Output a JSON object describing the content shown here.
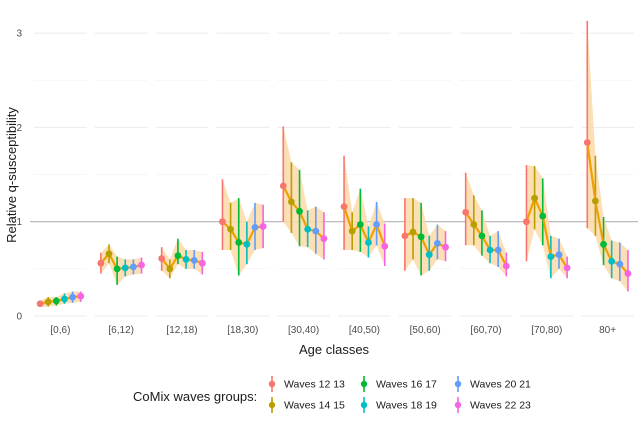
{
  "chart_data": {
    "type": "line",
    "title": "",
    "xlabel": "Age classes",
    "ylabel": "Relative q-susceptibility",
    "ylim": [
      0,
      3.2
    ],
    "yticks": [
      0,
      1,
      2,
      3
    ],
    "reference_line": 1,
    "grid": true,
    "categories": [
      "[0,6)",
      "[6,12)",
      "[12,18)",
      "[18,30)",
      "[30,40)",
      "[40,50)",
      "[50,60)",
      "[60,70)",
      "[70,80)",
      "80+"
    ],
    "legend": {
      "title": "CoMix waves groups:",
      "position": "bottom"
    },
    "series": [
      {
        "name": "Waves 12 13",
        "color": "#F8766D",
        "values": [
          0.13,
          0.56,
          0.61,
          1.0,
          1.38,
          1.16,
          0.85,
          1.1,
          1.0,
          1.84
        ],
        "low": [
          0.1,
          0.45,
          0.48,
          0.7,
          1.0,
          0.7,
          0.48,
          0.75,
          0.58,
          0.93
        ],
        "high": [
          0.16,
          0.67,
          0.73,
          1.45,
          2.01,
          1.7,
          1.25,
          1.52,
          1.6,
          3.13
        ]
      },
      {
        "name": "Waves 14 15",
        "color": "#B79F00",
        "values": [
          0.15,
          0.66,
          0.5,
          0.92,
          1.21,
          0.9,
          0.89,
          0.97,
          1.25,
          1.22
        ],
        "low": [
          0.1,
          0.56,
          0.4,
          0.7,
          0.88,
          0.7,
          0.6,
          0.75,
          0.92,
          0.85
        ],
        "high": [
          0.2,
          0.76,
          0.6,
          1.2,
          1.63,
          1.1,
          1.25,
          1.28,
          1.59,
          1.7
        ]
      },
      {
        "name": "Waves 16 17",
        "color": "#00BA38",
        "values": [
          0.16,
          0.5,
          0.64,
          0.78,
          1.11,
          0.97,
          0.84,
          0.85,
          1.06,
          0.76
        ],
        "low": [
          0.11,
          0.33,
          0.55,
          0.43,
          0.74,
          0.68,
          0.43,
          0.64,
          0.75,
          0.54
        ],
        "high": [
          0.2,
          0.63,
          0.82,
          1.25,
          1.55,
          1.35,
          1.2,
          1.12,
          1.46,
          1.05
        ]
      },
      {
        "name": "Waves 18 19",
        "color": "#00BFC4",
        "values": [
          0.18,
          0.51,
          0.6,
          0.76,
          0.92,
          0.78,
          0.65,
          0.7,
          0.63,
          0.58
        ],
        "low": [
          0.13,
          0.42,
          0.5,
          0.55,
          0.73,
          0.62,
          0.48,
          0.56,
          0.4,
          0.4
        ],
        "high": [
          0.24,
          0.6,
          0.7,
          1.0,
          1.12,
          0.95,
          0.85,
          0.85,
          0.85,
          0.8
        ]
      },
      {
        "name": "Waves 20 21",
        "color": "#619CFF",
        "values": [
          0.2,
          0.52,
          0.59,
          0.94,
          0.9,
          0.97,
          0.77,
          0.7,
          0.65,
          0.55
        ],
        "low": [
          0.14,
          0.44,
          0.5,
          0.7,
          0.66,
          0.75,
          0.6,
          0.52,
          0.5,
          0.37
        ],
        "high": [
          0.26,
          0.6,
          0.7,
          1.2,
          1.16,
          1.21,
          0.97,
          0.9,
          0.82,
          0.78
        ]
      },
      {
        "name": "Waves 22 23",
        "color": "#F564E3",
        "values": [
          0.21,
          0.54,
          0.56,
          0.95,
          0.82,
          0.74,
          0.73,
          0.53,
          0.51,
          0.45
        ],
        "low": [
          0.15,
          0.45,
          0.44,
          0.72,
          0.6,
          0.53,
          0.58,
          0.42,
          0.4,
          0.26
        ],
        "high": [
          0.26,
          0.62,
          0.68,
          1.18,
          1.1,
          0.98,
          0.9,
          0.67,
          0.63,
          0.7
        ]
      }
    ],
    "overall": {
      "color": "#F0A000",
      "band_color": "#FDD9A8"
    }
  }
}
